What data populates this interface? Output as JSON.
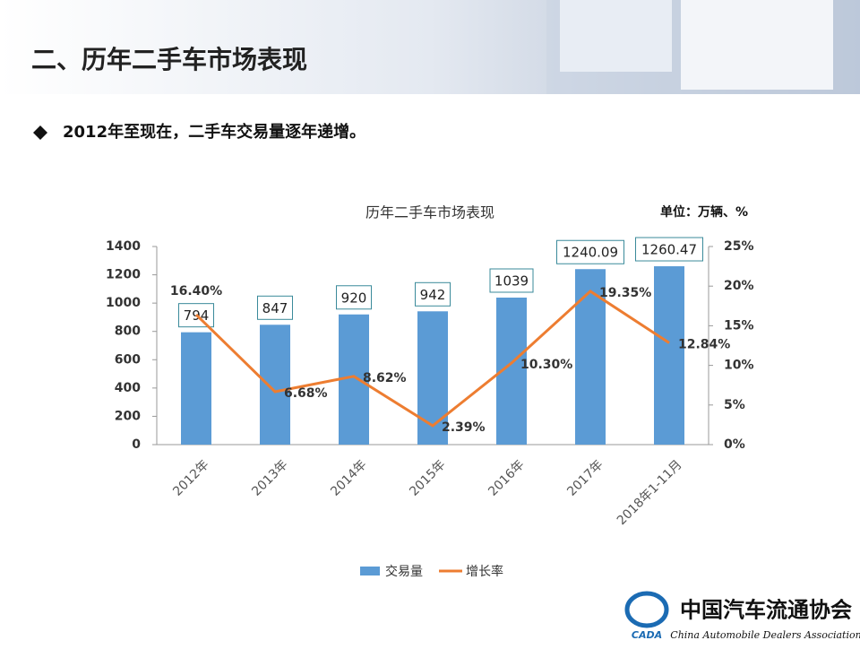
{
  "header": {
    "title": "二、历年二手车市场表现"
  },
  "bullet": "2012年至现在，二手车交易量逐年递增。",
  "logo": {
    "name": "中国汽车流通协会",
    "english": "China Automobile Dealers Association",
    "abbr": "CADA"
  },
  "chart_data": {
    "type": "bar",
    "title": "历年二手车市场表现",
    "unit": "单位：万辆、%",
    "categories": [
      "2012年",
      "2013年",
      "2014年",
      "2015年",
      "2016年",
      "2017年",
      "2018年1-11月"
    ],
    "series": [
      {
        "name": "交易量",
        "type": "bar",
        "color": "#5b9bd5",
        "values": [
          794,
          847,
          920,
          942,
          1039,
          1240.09,
          1260.47
        ]
      },
      {
        "name": "增长率",
        "type": "line",
        "axis": "y2",
        "color": "#ed7d31",
        "values": [
          16.4,
          6.68,
          8.62,
          2.39,
          10.3,
          19.35,
          12.84
        ],
        "value_labels": [
          "16.40%",
          "6.68%",
          "8.62%",
          "2.39%",
          "10.30%",
          "19.35%",
          "12.84%"
        ]
      }
    ],
    "ylim": [
      0,
      1400
    ],
    "yticks": [
      0,
      200,
      400,
      600,
      800,
      1000,
      1200,
      1400
    ],
    "y2lim": [
      0,
      25
    ],
    "y2ticks": [
      {
        "value": 0,
        "label": "0%"
      },
      {
        "value": 5,
        "label": "5%"
      },
      {
        "value": 10,
        "label": "10%"
      },
      {
        "value": 15,
        "label": "15%"
      },
      {
        "value": 20,
        "label": "20%"
      },
      {
        "value": 25,
        "label": "25%"
      }
    ],
    "legend": "bottom"
  }
}
